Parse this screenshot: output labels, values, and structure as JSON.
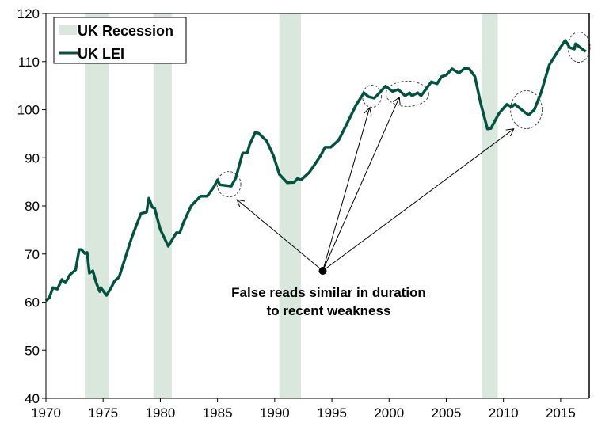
{
  "chart_data": {
    "type": "line",
    "title": "",
    "xlabel": "",
    "ylabel": "",
    "xlim": [
      1970,
      2017.5
    ],
    "ylim": [
      40,
      120
    ],
    "x_ticks": [
      "1970",
      "1975",
      "1980",
      "1985",
      "1990",
      "1995",
      "2000",
      "2005",
      "2010",
      "2015"
    ],
    "y_ticks": [
      "40",
      "50",
      "60",
      "70",
      "80",
      "90",
      "100",
      "110",
      "120"
    ],
    "grid": false,
    "legend": {
      "placement": "top-left",
      "entries": [
        "UK Recession",
        "UK LEI"
      ]
    },
    "recessions": [
      {
        "name": "UK Recession",
        "start": 1973.4,
        "end": 1975.5
      },
      {
        "start": 1979.4,
        "end": 1981.0
      },
      {
        "start": 1990.4,
        "end": 1992.3
      },
      {
        "start": 2008.1,
        "end": 2009.5
      }
    ],
    "series": [
      {
        "name": "UK LEI",
        "color": "#00533f",
        "x": [
          1970.0,
          1970.3,
          1970.6,
          1971.0,
          1971.4,
          1971.7,
          1972.1,
          1972.6,
          1972.9,
          1973.1,
          1973.4,
          1973.6,
          1973.8,
          1974.1,
          1974.4,
          1974.7,
          1974.8,
          1975.3,
          1975.7,
          1976.0,
          1976.4,
          1976.9,
          1977.5,
          1978.3,
          1978.8,
          1979.0,
          1979.3,
          1979.5,
          1980.0,
          1980.7,
          1981.4,
          1981.7,
          1982.0,
          1982.7,
          1983.5,
          1984.1,
          1984.7,
          1985.0,
          1985.2,
          1986.2,
          1986.6,
          1987.2,
          1987.6,
          1987.8,
          1988.3,
          1988.6,
          1989.3,
          1989.9,
          1990.4,
          1991.1,
          1991.7,
          1992.0,
          1992.3,
          1993.0,
          1993.5,
          1994.0,
          1994.4,
          1994.9,
          1995.6,
          1996.3,
          1997.1,
          1997.8,
          1998.2,
          1998.7,
          1999.0,
          1999.7,
          2000.3,
          2000.8,
          2001.4,
          2001.8,
          2002.0,
          2002.5,
          2002.8,
          2003.2,
          2003.7,
          2004.2,
          2004.6,
          2005.0,
          2005.5,
          2006.1,
          2006.6,
          2007.0,
          2007.5,
          2008.0,
          2008.6,
          2008.9,
          2009.6,
          2010.3,
          2010.7,
          2011.0,
          2011.9,
          2012.2,
          2012.7,
          2013.3,
          2014.0,
          2014.8,
          2015.4,
          2015.8,
          2016.2,
          2016.3,
          2017.0,
          2017.2
        ],
        "y": [
          60.3,
          60.9,
          63.0,
          62.7,
          64.7,
          64.0,
          65.7,
          66.7,
          70.9,
          70.9,
          70.1,
          70.3,
          66.0,
          66.5,
          64.0,
          62.2,
          63.0,
          61.4,
          63.0,
          64.4,
          65.2,
          69.0,
          73.4,
          78.4,
          78.7,
          81.6,
          79.7,
          79.5,
          75.1,
          71.6,
          74.4,
          74.4,
          76.4,
          80.0,
          82.0,
          82.0,
          84.0,
          85.4,
          84.4,
          84.1,
          85.8,
          91.0,
          91.0,
          92.7,
          95.3,
          95.1,
          93.5,
          90.4,
          86.6,
          84.8,
          84.9,
          85.7,
          85.4,
          86.9,
          88.6,
          90.4,
          92.2,
          92.2,
          93.7,
          97.0,
          100.9,
          103.5,
          102.7,
          102.4,
          103.1,
          104.9,
          103.8,
          104.2,
          102.9,
          103.5,
          102.9,
          103.5,
          102.9,
          104.2,
          105.8,
          105.4,
          106.9,
          107.2,
          108.5,
          107.6,
          108.6,
          108.5,
          106.9,
          101.4,
          96.0,
          96.1,
          99.2,
          101.1,
          100.6,
          101.1,
          99.4,
          98.9,
          100.0,
          103.6,
          109.3,
          112.3,
          114.4,
          112.9,
          112.6,
          113.7,
          112.4,
          112.1
        ]
      }
    ],
    "recession_color": "#d9e7dd",
    "annotations": {
      "text_line1": "False reads similar in duration",
      "text_line2": "to recent weakness"
    }
  }
}
